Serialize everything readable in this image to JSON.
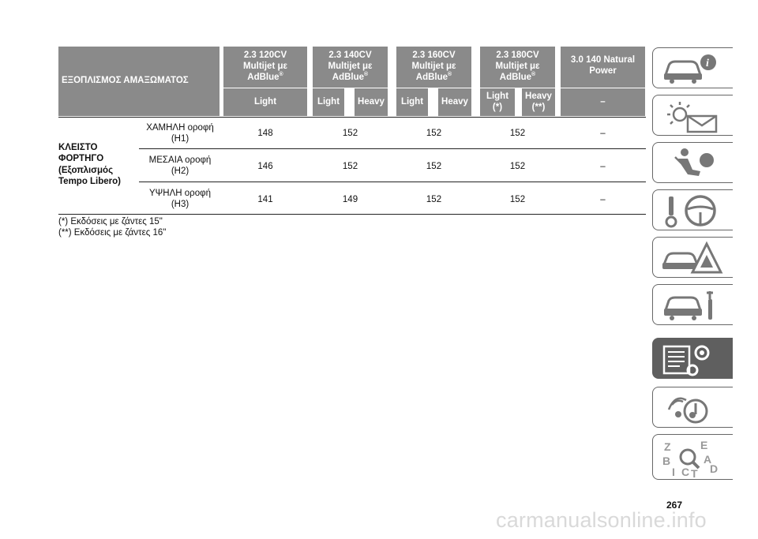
{
  "table": {
    "equipment_header": "ΕΞΟΠΛΙΣΜΟΣ ΑΜΑΞΩΜΑΤΟΣ",
    "engines": [
      {
        "line1": "2.3 120CV",
        "line2": "Multijet με",
        "line3": "AdBlue",
        "mark": "®"
      },
      {
        "line1": "2.3 140CV",
        "line2": "Multijet με",
        "line3": "AdBlue",
        "mark": "®"
      },
      {
        "line1": "2.3 160CV",
        "line2": "Multijet με",
        "line3": "AdBlue",
        "mark": "®"
      },
      {
        "line1": "2.3 180CV",
        "line2": "Multijet με",
        "line3": "AdBlue",
        "mark": "®"
      },
      {
        "line1": "3.0 140 Natural",
        "line2": "Power",
        "line3": "",
        "mark": ""
      }
    ],
    "versions": {
      "e1_light": "Light",
      "e2_light": "Light",
      "e2_heavy": "Heavy",
      "e3_light": "Light",
      "e3_heavy": "Heavy",
      "e4_light_1": "Light",
      "e4_light_2": "(*)",
      "e4_heavy_1": "Heavy",
      "e4_heavy_2": "(**)",
      "e5_dash": "–"
    },
    "group_label": {
      "line1": "ΚΛΕΙΣΤΟ",
      "line2": "ΦΟΡΤΗΓΟ",
      "line3": "(Εξοπλισμός",
      "line4": "Tempo Libero)"
    },
    "rows": [
      {
        "name1": "ΧΑΜΗΛΗ οροφή",
        "name2": "(H1)",
        "v1": "148",
        "v2": "152",
        "v3": "152",
        "v4": "152",
        "v5": "–"
      },
      {
        "name1": "ΜΕΣΑΙΑ οροφή",
        "name2": "(H2)",
        "v1": "146",
        "v2": "152",
        "v3": "152",
        "v4": "152",
        "v5": "–"
      },
      {
        "name1": "ΥΨΗΛΗ οροφή",
        "name2": "(H3)",
        "v1": "141",
        "v2": "149",
        "v3": "152",
        "v4": "152",
        "v5": "–"
      }
    ],
    "footnotes": [
      "(*) Εκδόσεις με ζάντες 15\"",
      "(**) Εκδόσεις με ζάντες 16\""
    ]
  },
  "page_number": "267",
  "watermark": "carmanualsonline.info",
  "side_tabs": [
    {
      "icon": "car-info-icon",
      "active": false
    },
    {
      "icon": "warning-lights-icon",
      "active": false
    },
    {
      "icon": "airbag-seat-icon",
      "active": false
    },
    {
      "icon": "steering-key-icon",
      "active": false
    },
    {
      "icon": "breakdown-triangle-icon",
      "active": false
    },
    {
      "icon": "car-maintenance-icon",
      "active": true
    },
    {
      "icon": "technical-data-icon",
      "active": false
    },
    {
      "icon": "multimedia-icon",
      "active": false
    },
    {
      "icon": "alphabetical-index-icon",
      "active": false
    }
  ],
  "colors": {
    "header_bg": "#8a8a8a",
    "active_tab": "#5f5f5f"
  }
}
